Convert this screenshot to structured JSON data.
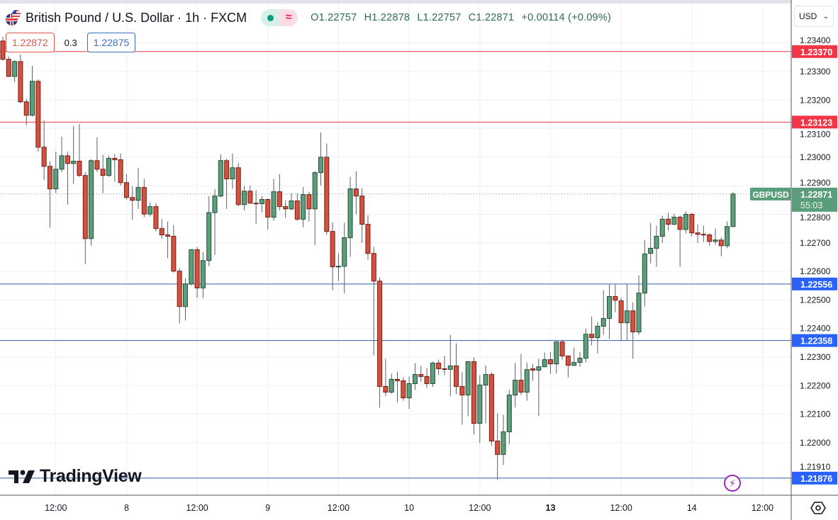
{
  "header": {
    "title": "British Pound / U.S. Dollar · 1h · FXCM",
    "market_status_icon": "green-dot-icon",
    "delay_icon": "approx-icon",
    "ohlc": {
      "open": "O1.22757",
      "high": "H1.22878",
      "low": "L1.22757",
      "close": "C1.22871",
      "change": "+0.00114 (+0.09%)"
    },
    "sell_price": "1.22872",
    "spread": "0.3",
    "buy_price": "1.22875"
  },
  "price_axis": {
    "currency": "USD"
  },
  "logo": "TradingView",
  "colors": {
    "up": "#5f9e7c",
    "up_border": "#1e4d35",
    "down": "#d2513f",
    "down_border": "#7a1b12",
    "resistance": "#f23645",
    "support": "#2962ff",
    "last_price": "#5a9d7b"
  },
  "chart_data": {
    "type": "candlestick",
    "symbol": "GBPUSD",
    "interval": "1h",
    "ylim": [
      1.2184,
      1.2348
    ],
    "y_ticks": [
      "1.23400",
      "1.23300",
      "1.23200",
      "1.23100",
      "1.23000",
      "1.22900",
      "1.22800",
      "1.22700",
      "1.22600",
      "1.22500",
      "1.22400",
      "1.22300",
      "1.22200",
      "1.22100",
      "1.22000",
      "1.21910"
    ],
    "x_ticks": [
      {
        "label": "12:00",
        "candle": 9
      },
      {
        "label": "8",
        "candle": 21
      },
      {
        "label": "12:00",
        "candle": 33
      },
      {
        "label": "9",
        "candle": 45
      },
      {
        "label": "12:00",
        "candle": 57
      },
      {
        "label": "10",
        "candle": 69
      },
      {
        "label": "12:00",
        "candle": 81
      },
      {
        "label": "13",
        "candle": 93
      },
      {
        "label": "12:00",
        "candle": 105
      },
      {
        "label": "14",
        "candle": 117
      },
      {
        "label": "12:00",
        "candle": 129
      }
    ],
    "x_ticks_bold": [
      "13"
    ],
    "grid": true,
    "horizontal_lines": [
      {
        "price": "1.23370",
        "kind": "resistance"
      },
      {
        "price": "1.23123",
        "kind": "resistance"
      },
      {
        "price": "1.22556",
        "kind": "support"
      },
      {
        "price": "1.22358",
        "kind": "support"
      },
      {
        "price": "1.21876",
        "kind": "support"
      }
    ],
    "last_price": {
      "symbol": "GBPUSD",
      "price": "1.22871",
      "countdown": "55:03"
    },
    "candles_ohlc": [
      [
        1.23407,
        1.23422,
        1.23338,
        1.23343
      ],
      [
        1.23343,
        1.23353,
        1.23281,
        1.23283
      ],
      [
        1.23283,
        1.2334,
        1.23263,
        1.23335
      ],
      [
        1.23335,
        1.2336,
        1.23189,
        1.23194
      ],
      [
        1.23194,
        1.23204,
        1.23112,
        1.23147
      ],
      [
        1.23147,
        1.2332,
        1.23142,
        1.23266
      ],
      [
        1.23266,
        1.23273,
        1.2302,
        1.23035
      ],
      [
        1.23035,
        1.23129,
        1.22921,
        1.22968
      ],
      [
        1.22968,
        1.22986,
        1.22753,
        1.22889
      ],
      [
        1.22889,
        1.2302,
        1.22874,
        1.22958
      ],
      [
        1.22958,
        1.23072,
        1.22948,
        1.23005
      ],
      [
        1.23005,
        1.2302,
        1.22834,
        1.22978
      ],
      [
        1.22978,
        1.2311,
        1.22906,
        1.22986
      ],
      [
        1.22986,
        1.23117,
        1.22931,
        1.22936
      ],
      [
        1.22936,
        1.22948,
        1.22626,
        1.22715
      ],
      [
        1.22715,
        1.22993,
        1.2269,
        1.22988
      ],
      [
        1.22988,
        1.2307,
        1.22948,
        1.22958
      ],
      [
        1.22958,
        1.23008,
        1.22874,
        1.22936
      ],
      [
        1.22936,
        1.23005,
        1.22931,
        1.22996
      ],
      [
        1.22996,
        1.2301,
        1.22914,
        1.22991
      ],
      [
        1.22991,
        1.23013,
        1.22901,
        1.22911
      ],
      [
        1.22911,
        1.22941,
        1.22852,
        1.22859
      ],
      [
        1.22859,
        1.22899,
        1.2278,
        1.22849
      ],
      [
        1.22849,
        1.22963,
        1.22819,
        1.22894
      ],
      [
        1.22894,
        1.22924,
        1.2279,
        1.22801
      ],
      [
        1.22801,
        1.22842,
        1.22792,
        1.22827
      ],
      [
        1.22827,
        1.22839,
        1.2274,
        1.2275
      ],
      [
        1.2275,
        1.22783,
        1.22715,
        1.22728
      ],
      [
        1.22728,
        1.22775,
        1.22646,
        1.22723
      ],
      [
        1.22723,
        1.22762,
        1.22596,
        1.22601
      ],
      [
        1.22601,
        1.22611,
        1.22418,
        1.22477
      ],
      [
        1.22477,
        1.22576,
        1.22428,
        1.22556
      ],
      [
        1.22556,
        1.22678,
        1.22551,
        1.22676
      ],
      [
        1.22676,
        1.22686,
        1.22507,
        1.22542
      ],
      [
        1.22542,
        1.22668,
        1.22507,
        1.22638
      ],
      [
        1.22638,
        1.22864,
        1.22618,
        1.22806
      ],
      [
        1.22806,
        1.22889,
        1.22658,
        1.22864
      ],
      [
        1.22864,
        1.2301,
        1.22859,
        1.22988
      ],
      [
        1.22988,
        1.22995,
        1.22819,
        1.22924
      ],
      [
        1.22924,
        1.23013,
        1.22889,
        1.22963
      ],
      [
        1.22963,
        1.22981,
        1.22829,
        1.22834
      ],
      [
        1.22834,
        1.22899,
        1.22814,
        1.22881
      ],
      [
        1.22881,
        1.22901,
        1.22837,
        1.22839
      ],
      [
        1.22839,
        1.22884,
        1.22767,
        1.22837
      ],
      [
        1.22837,
        1.22864,
        1.22807,
        1.22852
      ],
      [
        1.22852,
        1.22855,
        1.22747,
        1.2279
      ],
      [
        1.2279,
        1.22924,
        1.22777,
        1.22879
      ],
      [
        1.22879,
        1.22941,
        1.22814,
        1.22827
      ],
      [
        1.22827,
        1.22849,
        1.22787,
        1.22819
      ],
      [
        1.22819,
        1.22874,
        1.22814,
        1.22847
      ],
      [
        1.22847,
        1.22874,
        1.22777,
        1.22783
      ],
      [
        1.22783,
        1.22896,
        1.22755,
        1.22869
      ],
      [
        1.22869,
        1.22879,
        1.22775,
        1.22819
      ],
      [
        1.22819,
        1.22951,
        1.22693,
        1.22946
      ],
      [
        1.22946,
        1.23087,
        1.22901,
        1.23
      ],
      [
        1.23,
        1.23048,
        1.22728,
        1.2274
      ],
      [
        1.2274,
        1.22772,
        1.22534,
        1.22616
      ],
      [
        1.22616,
        1.22663,
        1.22566,
        1.22618
      ],
      [
        1.22618,
        1.2277,
        1.22522,
        1.22718
      ],
      [
        1.22718,
        1.22931,
        1.22651,
        1.22889
      ],
      [
        1.22889,
        1.22951,
        1.228,
        1.22864
      ],
      [
        1.22864,
        1.22891,
        1.227,
        1.22765
      ],
      [
        1.22765,
        1.22797,
        1.22641,
        1.22663
      ],
      [
        1.22663,
        1.22686,
        1.22306,
        1.22566
      ],
      [
        1.22566,
        1.22579,
        1.22123,
        1.22197
      ],
      [
        1.22197,
        1.22294,
        1.22162,
        1.22177
      ],
      [
        1.22177,
        1.22242,
        1.22172,
        1.22222
      ],
      [
        1.22222,
        1.22249,
        1.22142,
        1.22217
      ],
      [
        1.22217,
        1.22229,
        1.22147,
        1.22157
      ],
      [
        1.22157,
        1.22232,
        1.22118,
        1.22207
      ],
      [
        1.22207,
        1.22279,
        1.22185,
        1.22239
      ],
      [
        1.22239,
        1.22269,
        1.22214,
        1.22232
      ],
      [
        1.22232,
        1.22261,
        1.22192,
        1.22207
      ],
      [
        1.22207,
        1.22284,
        1.22195,
        1.22279
      ],
      [
        1.22279,
        1.22291,
        1.22237,
        1.22259
      ],
      [
        1.22259,
        1.22304,
        1.22237,
        1.22257
      ],
      [
        1.22257,
        1.22378,
        1.22162,
        1.22269
      ],
      [
        1.22269,
        1.22348,
        1.2217,
        1.22197
      ],
      [
        1.22197,
        1.22247,
        1.22063,
        1.22167
      ],
      [
        1.22167,
        1.22286,
        1.22093,
        1.22284
      ],
      [
        1.22284,
        1.22299,
        1.22028,
        1.22068
      ],
      [
        1.22068,
        1.22237,
        1.21999,
        1.22202
      ],
      [
        1.22202,
        1.22271,
        1.22068,
        1.22239
      ],
      [
        1.22239,
        1.22247,
        1.21989,
        1.22006
      ],
      [
        1.22006,
        1.22103,
        1.2187,
        1.21959
      ],
      [
        1.21959,
        1.22098,
        1.21922,
        1.22038
      ],
      [
        1.22038,
        1.22185,
        1.21994,
        1.22167
      ],
      [
        1.22167,
        1.22279,
        1.22123,
        1.22219
      ],
      [
        1.22219,
        1.22311,
        1.22167,
        1.22177
      ],
      [
        1.22177,
        1.22281,
        1.22147,
        1.22256
      ],
      [
        1.22259,
        1.22276,
        1.22217,
        1.22254
      ],
      [
        1.22254,
        1.22294,
        1.22093,
        1.22266
      ],
      [
        1.22266,
        1.22316,
        1.22264,
        1.22291
      ],
      [
        1.22291,
        1.22318,
        1.22242,
        1.22276
      ],
      [
        1.22276,
        1.22356,
        1.22242,
        1.22353
      ],
      [
        1.22353,
        1.22361,
        1.22291,
        1.22304
      ],
      [
        1.22304,
        1.22306,
        1.22229,
        1.22271
      ],
      [
        1.22271,
        1.22333,
        1.22269,
        1.22281
      ],
      [
        1.22281,
        1.22318,
        1.22266,
        1.22296
      ],
      [
        1.22296,
        1.224,
        1.22281,
        1.2238
      ],
      [
        1.2238,
        1.22442,
        1.22341,
        1.22368
      ],
      [
        1.22368,
        1.22423,
        1.22313,
        1.22408
      ],
      [
        1.22408,
        1.22534,
        1.22378,
        1.22435
      ],
      [
        1.22435,
        1.22554,
        1.22363,
        1.22512
      ],
      [
        1.22512,
        1.22554,
        1.22457,
        1.22499
      ],
      [
        1.22497,
        1.22507,
        1.22356,
        1.2242
      ],
      [
        1.2242,
        1.22554,
        1.22356,
        1.22462
      ],
      [
        1.22462,
        1.22492,
        1.22294,
        1.22388
      ],
      [
        1.22388,
        1.22586,
        1.22378,
        1.22524
      ],
      [
        1.22524,
        1.2271,
        1.22477,
        1.22661
      ],
      [
        1.22663,
        1.2277,
        1.22628,
        1.22681
      ],
      [
        1.22681,
        1.2276,
        1.22616,
        1.22723
      ],
      [
        1.22723,
        1.22795,
        1.227,
        1.22783
      ],
      [
        1.22783,
        1.22805,
        1.22743,
        1.22765
      ],
      [
        1.22765,
        1.22802,
        1.22762,
        1.2279
      ],
      [
        1.2279,
        1.22795,
        1.22616,
        1.22747
      ],
      [
        1.22747,
        1.2281,
        1.22733,
        1.228
      ],
      [
        1.228,
        1.22805,
        1.22723,
        1.22735
      ],
      [
        1.22735,
        1.22765,
        1.227,
        1.2273
      ],
      [
        1.2273,
        1.2276,
        1.22703,
        1.22728
      ],
      [
        1.22728,
        1.22733,
        1.2269,
        1.22705
      ],
      [
        1.22705,
        1.2275,
        1.22693,
        1.2271
      ],
      [
        1.2271,
        1.2272,
        1.22653,
        1.2269
      ],
      [
        1.2269,
        1.22775,
        1.22681,
        1.22757
      ],
      [
        1.22757,
        1.22878,
        1.22757,
        1.22871
      ]
    ]
  }
}
